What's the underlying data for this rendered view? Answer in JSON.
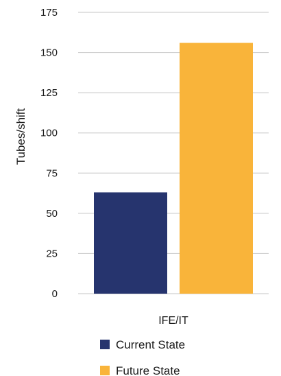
{
  "chart_data": {
    "type": "bar",
    "categories": [
      "IFE/IT"
    ],
    "series": [
      {
        "name": "Current State",
        "values": [
          63
        ],
        "color": "#26346e"
      },
      {
        "name": "Future State",
        "values": [
          156
        ],
        "color": "#f9b43a"
      }
    ],
    "ylabel": "Tubes/shift",
    "xlabel": "",
    "ylim": [
      0,
      175
    ],
    "yticks": [
      0,
      25,
      50,
      75,
      100,
      125,
      150,
      175
    ],
    "grid": true,
    "legend": "bottom"
  }
}
